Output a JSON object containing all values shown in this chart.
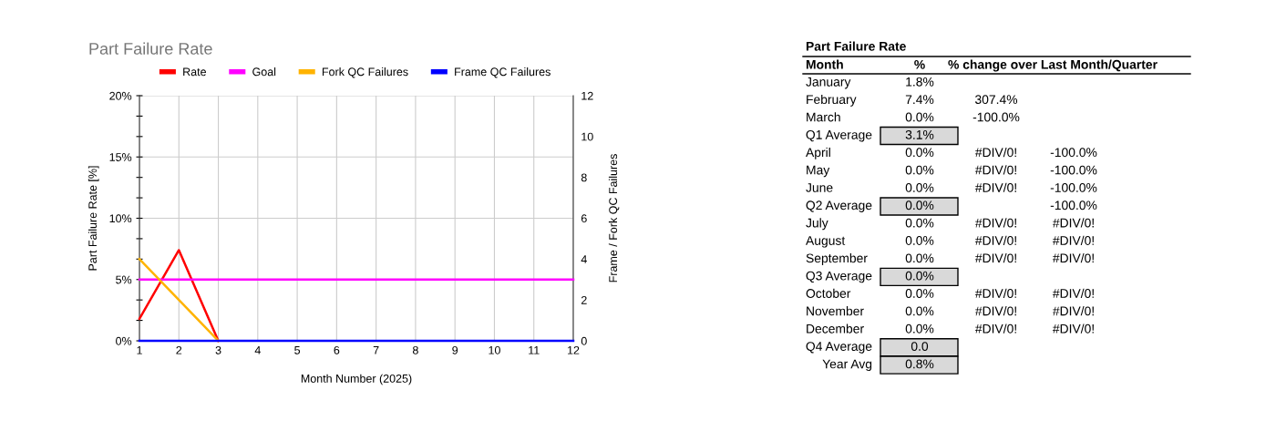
{
  "chart_data": [
    {
      "type": "line",
      "title": "Part Failure Rate",
      "xlabel": "Month Number (2025)",
      "ylabel": "Part Failure Rate [%]",
      "y2label": "Frame / Fork QC Failures",
      "x": [
        1,
        2,
        3,
        4,
        5,
        6,
        7,
        8,
        9,
        10,
        11,
        12
      ],
      "series": [
        {
          "name": "Rate",
          "color": "#ff0000",
          "values": [
            1.8,
            7.4,
            0,
            null,
            null,
            null,
            null,
            null,
            null,
            null,
            null,
            null
          ]
        },
        {
          "name": "Goal",
          "color": "#ff00ff",
          "values": [
            5,
            5,
            5,
            5,
            5,
            5,
            5,
            5,
            5,
            5,
            5,
            5
          ]
        },
        {
          "name": "Fork QC Failures",
          "color": "#ffb300",
          "axis": "y2",
          "values": [
            4,
            2,
            0,
            null,
            null,
            null,
            null,
            null,
            null,
            null,
            null,
            null
          ]
        },
        {
          "name": "Frame QC Failures",
          "color": "#0000ff",
          "axis": "y2",
          "values": [
            0,
            0,
            0,
            0,
            0,
            0,
            0,
            0,
            0,
            0,
            0,
            0
          ]
        }
      ],
      "xlim": [
        1,
        12
      ],
      "xticks": [
        1,
        2,
        3,
        4,
        5,
        6,
        7,
        8,
        9,
        10,
        11,
        12
      ],
      "ylim": [
        0,
        20
      ],
      "yticks": [
        {
          "value": 0,
          "label": "0%"
        },
        {
          "value": 1.667,
          "label": null
        },
        {
          "value": 3.333,
          "label": null
        },
        {
          "value": 5,
          "label": "5%"
        },
        {
          "value": 6.667,
          "label": null
        },
        {
          "value": 8.333,
          "label": null
        },
        {
          "value": 10,
          "label": "10%"
        },
        {
          "value": 11.667,
          "label": null
        },
        {
          "value": 13.333,
          "label": null
        },
        {
          "value": 15,
          "label": "15%"
        },
        {
          "value": 16.667,
          "label": null
        },
        {
          "value": 18.333,
          "label": null
        },
        {
          "value": 20,
          "label": "20%"
        }
      ],
      "y2lim": [
        0,
        12
      ],
      "y2ticks": [
        0,
        2,
        4,
        6,
        8,
        10,
        12
      ],
      "grid": true,
      "legend": "top",
      "marker": "none",
      "line_style": "solid"
    },
    {
      "type": "other",
      "title": "Part Failure Rate",
      "categories": [
        "Month",
        "%",
        "% change over Last Month/Quarter"
      ],
      "cell_labels": [
        [
          "January",
          "1.8%",
          null,
          null
        ],
        [
          "February",
          "7.4%",
          "307.4%",
          null
        ],
        [
          "March",
          "0.0%",
          "-100.0%",
          null
        ],
        [
          "Q1 Average",
          "3.1%",
          null,
          null
        ],
        [
          "April",
          "0.0%",
          "#DIV/0!",
          "-100.0%"
        ],
        [
          "May",
          "0.0%",
          "#DIV/0!",
          "-100.0%"
        ],
        [
          "June",
          "0.0%",
          "#DIV/0!",
          "-100.0%"
        ],
        [
          "Q2 Average",
          "0.0%",
          null,
          "-100.0%"
        ],
        [
          "July",
          "0.0%",
          "#DIV/0!",
          "#DIV/0!"
        ],
        [
          "August",
          "0.0%",
          "#DIV/0!",
          "#DIV/0!"
        ],
        [
          "September",
          "0.0%",
          "#DIV/0!",
          "#DIV/0!"
        ],
        [
          "Q3 Average",
          "0.0%",
          null,
          null
        ],
        [
          "October",
          "0.0%",
          "#DIV/0!",
          "#DIV/0!"
        ],
        [
          "November",
          "0.0%",
          "#DIV/0!",
          "#DIV/0!"
        ],
        [
          "December",
          "0.0%",
          "#DIV/0!",
          "#DIV/0!"
        ],
        [
          "Q4 Average",
          "0.0",
          null,
          null
        ],
        [
          "Year Avg",
          "0.8%",
          null,
          null
        ]
      ],
      "colors": [
        null,
        null,
        null,
        "#d9d9d9",
        null,
        null,
        null,
        "#d9d9d9",
        null,
        null,
        null,
        "#d9d9d9",
        null,
        null,
        null,
        "#d9d9d9",
        "#d9d9d9"
      ]
    }
  ]
}
